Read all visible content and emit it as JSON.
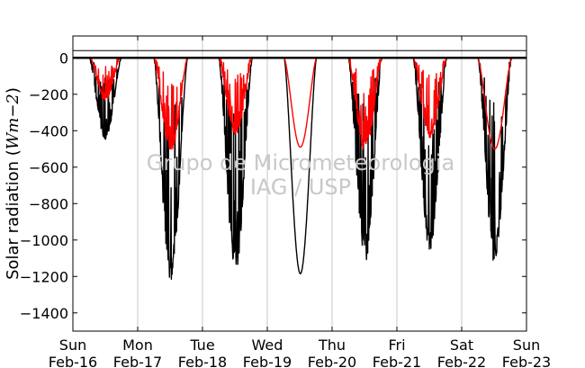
{
  "chart_data": {
    "type": "line",
    "title": "",
    "ylabel": {
      "prefix": "Solar radiation (",
      "unit": "Wm−2",
      "suffix": ")"
    },
    "xlabel": "",
    "ylim": [
      -1500,
      120
    ],
    "yticks": [
      0,
      -200,
      -400,
      -600,
      -800,
      -1000,
      -1200,
      -1400
    ],
    "ytick_labels": [
      "0",
      "−200",
      "−400",
      "−600",
      "−800",
      "−1000",
      "−1200",
      "−1400"
    ],
    "xlim": [
      0,
      7
    ],
    "xticks": [
      {
        "day": "Sun",
        "date": "Feb-16"
      },
      {
        "day": "Mon",
        "date": "Feb-17"
      },
      {
        "day": "Tue",
        "date": "Feb-18"
      },
      {
        "day": "Wed",
        "date": "Feb-19"
      },
      {
        "day": "Thu",
        "date": "Feb-20"
      },
      {
        "day": "Fri",
        "date": "Feb-21"
      },
      {
        "day": "Sat",
        "date": "Feb-22"
      },
      {
        "day": "Sun",
        "date": "Feb-23"
      }
    ],
    "vertical_grid": true,
    "reference_lines": [
      0,
      40
    ],
    "watermark": [
      "Grupo de Micrometeorologia",
      "IAG / USP"
    ],
    "series": [
      {
        "color": "#000000",
        "days": [
          {
            "day_index": 0,
            "rise": 0.25,
            "set": 0.75,
            "peak": -450,
            "noisy": true
          },
          {
            "day_index": 1,
            "rise": 0.25,
            "set": 0.77,
            "peak": -1230,
            "noisy": true
          },
          {
            "day_index": 2,
            "rise": 0.25,
            "set": 0.77,
            "peak": -1180,
            "noisy": true
          },
          {
            "day_index": 3,
            "rise": 0.26,
            "set": 0.76,
            "peak": -1185,
            "noisy": false
          },
          {
            "day_index": 4,
            "rise": 0.25,
            "set": 0.77,
            "peak": -1120,
            "noisy": true
          },
          {
            "day_index": 5,
            "rise": 0.25,
            "set": 0.77,
            "peak": -1060,
            "noisy": true
          },
          {
            "day_index": 6,
            "rise": 0.25,
            "set": 0.77,
            "peak": -1130,
            "noisy": true
          }
        ]
      },
      {
        "color": "#ff0000",
        "days": [
          {
            "day_index": 0,
            "rise": 0.27,
            "set": 0.73,
            "peak": -240,
            "noisy": true
          },
          {
            "day_index": 1,
            "rise": 0.25,
            "set": 0.77,
            "peak": -520,
            "noisy": true
          },
          {
            "day_index": 2,
            "rise": 0.25,
            "set": 0.77,
            "peak": -430,
            "noisy": true
          },
          {
            "day_index": 3,
            "rise": 0.26,
            "set": 0.76,
            "peak": -490,
            "noisy": false
          },
          {
            "day_index": 4,
            "rise": 0.25,
            "set": 0.77,
            "peak": -520,
            "noisy": true
          },
          {
            "day_index": 5,
            "rise": 0.25,
            "set": 0.77,
            "peak": -440,
            "noisy": true
          },
          {
            "day_index": 6,
            "rise": 0.25,
            "set": 0.77,
            "peak": -500,
            "noisy": false
          }
        ]
      }
    ]
  }
}
